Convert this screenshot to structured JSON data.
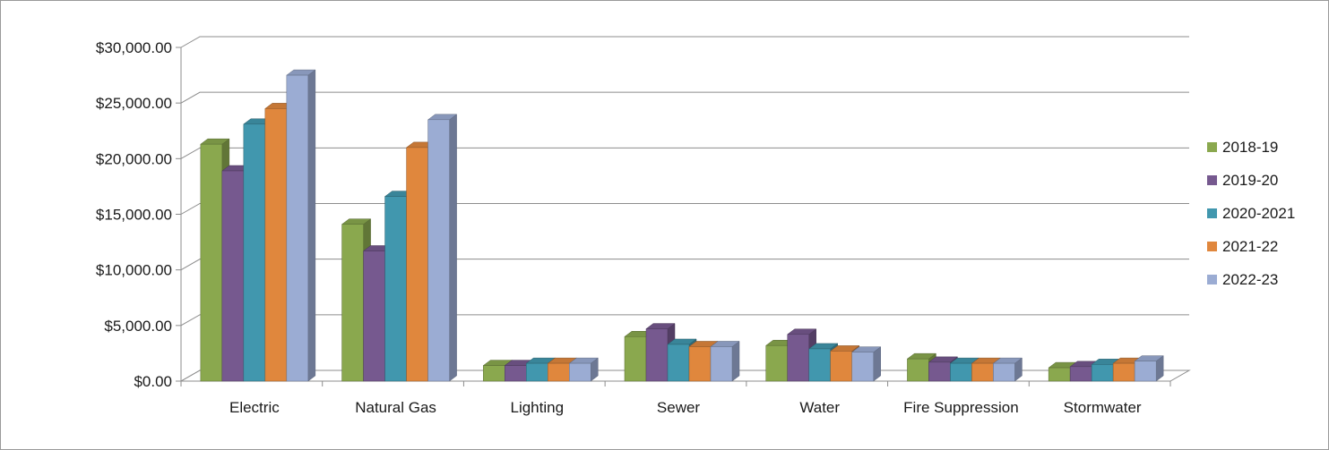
{
  "chart_data": {
    "type": "bar",
    "title": "",
    "xlabel": "",
    "ylabel": "",
    "categories": [
      "Electric",
      "Natural Gas",
      "Lighting",
      "Sewer",
      "Water",
      "Fire Suppression",
      "Stormwater"
    ],
    "series": [
      {
        "name": "2018-19",
        "color": "#8aa84e",
        "values": [
          21300,
          14100,
          1400,
          4000,
          3200,
          2000,
          1200
        ]
      },
      {
        "name": "2019-20",
        "color": "#76598f",
        "values": [
          18900,
          11700,
          1400,
          4700,
          4200,
          1700,
          1300
        ]
      },
      {
        "name": "2020-2021",
        "color": "#4197ae",
        "values": [
          23100,
          16600,
          1600,
          3300,
          2900,
          1600,
          1500
        ]
      },
      {
        "name": "2021-22",
        "color": "#e0873d",
        "values": [
          24500,
          21000,
          1600,
          3100,
          2700,
          1600,
          1600
        ]
      },
      {
        "name": "2022-23",
        "color": "#9bacd3",
        "values": [
          27500,
          23500,
          1600,
          3100,
          2600,
          1600,
          1800
        ]
      }
    ],
    "ylim": [
      0,
      30000
    ],
    "yticks": [
      "$0.00",
      "$5,000.00",
      "$10,000.00",
      "$15,000.00",
      "$20,000.00",
      "$25,000.00",
      "$30,000.00"
    ],
    "grid": true,
    "style": "3d-clustered-column",
    "legend": {
      "position": "right"
    }
  }
}
